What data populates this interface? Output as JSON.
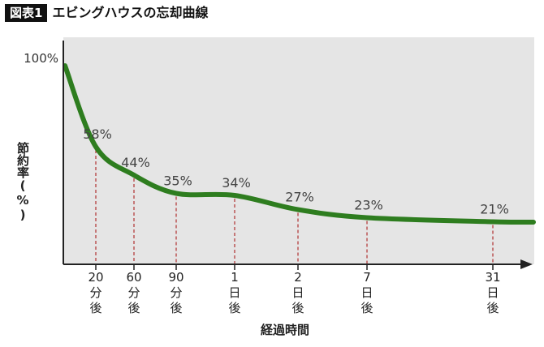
{
  "header": {
    "badge": "図表1",
    "title": "エビングハウスの忘却曲線"
  },
  "chart_data": {
    "type": "line",
    "title": "エビングハウスの忘却曲線",
    "xlabel": "経過時間",
    "ylabel": "節約率(%)",
    "y_axis_top_label": "100%",
    "ylim": [
      0,
      100
    ],
    "points": [
      {
        "x": "0",
        "value": 100,
        "label": "100%"
      },
      {
        "x": "20分後",
        "value": 58,
        "label": "58%"
      },
      {
        "x": "60分後",
        "value": 44,
        "label": "44%"
      },
      {
        "x": "90分後",
        "value": 35,
        "label": "35%"
      },
      {
        "x": "1日後",
        "value": 34,
        "label": "34%"
      },
      {
        "x": "2日後",
        "value": 27,
        "label": "27%"
      },
      {
        "x": "7日後",
        "value": 23,
        "label": "23%"
      },
      {
        "x": "31日後",
        "value": 21,
        "label": "21%"
      }
    ],
    "ticks": [
      {
        "lines": [
          "20",
          "分",
          "後"
        ]
      },
      {
        "lines": [
          "60",
          "分",
          "後"
        ]
      },
      {
        "lines": [
          "90",
          "分",
          "後"
        ]
      },
      {
        "lines": [
          "1",
          "日",
          "後"
        ]
      },
      {
        "lines": [
          "2",
          "日",
          "後"
        ]
      },
      {
        "lines": [
          "7",
          "日",
          "後"
        ]
      },
      {
        "lines": [
          "31",
          "日",
          "後"
        ]
      }
    ],
    "colors": {
      "curve": "#2e7d1f",
      "plot_bg": "#e5e5e5",
      "guide": "#b03030",
      "axis": "#222222"
    }
  }
}
